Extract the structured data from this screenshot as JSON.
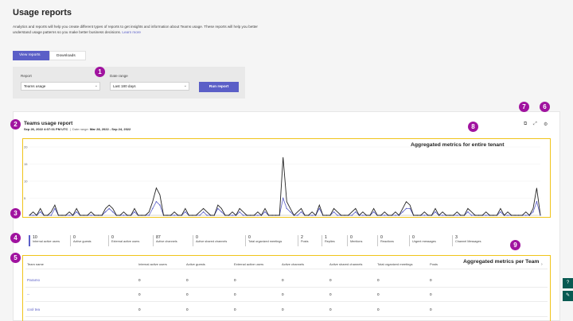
{
  "page": {
    "title": "Usage reports",
    "description": "Analytics and reports will help you create different types of reports to get insights and information about Teams usage. These reports will help you better understand usage patterns so you make better business decisions.",
    "learn_more": "Learn more"
  },
  "tabs": [
    {
      "label": "View reports",
      "active": true
    },
    {
      "label": "Downloads",
      "active": false
    }
  ],
  "filters": {
    "report_label": "Report",
    "report_value": "Teams usage",
    "date_label": "Date range",
    "date_value": "Last 180 days",
    "run_label": "Run report"
  },
  "report": {
    "title": "Teams usage report",
    "generated": "Sep 26, 2022 4:07:01 PM UTC",
    "date_range_label": "Date range:",
    "date_range_value": "Mar 28, 2022 - Sep 24, 2022"
  },
  "icons": [
    "export-icon",
    "expand-icon",
    "settings-icon"
  ],
  "chart_data": {
    "type": "line",
    "y_ticks": [
      "20",
      "15",
      "10",
      "5"
    ],
    "ylim": [
      0,
      20
    ],
    "series": [
      {
        "values": [
          0,
          1,
          0,
          2,
          0,
          0,
          1,
          3,
          0,
          0,
          0,
          1,
          0,
          2,
          0,
          0,
          0,
          1,
          0,
          0,
          0,
          2,
          3,
          2,
          0,
          0,
          1,
          0,
          0,
          2,
          0,
          0,
          0,
          1,
          4,
          8,
          6,
          0,
          0,
          0,
          1,
          0,
          0,
          2,
          0,
          0,
          0,
          1,
          2,
          1,
          0,
          0,
          3,
          2,
          0,
          0,
          1,
          0,
          2,
          1,
          0,
          0,
          0,
          1,
          0,
          2,
          0,
          0,
          0,
          0,
          17,
          4,
          2,
          0,
          1,
          2,
          0,
          0,
          1,
          0,
          3,
          0,
          0,
          0,
          2,
          1,
          0,
          0,
          0,
          1,
          2,
          0,
          1,
          0,
          0,
          2,
          0,
          0,
          1,
          0,
          0,
          1,
          0,
          2,
          4,
          3,
          0,
          0,
          0,
          1,
          0,
          0,
          2,
          0,
          1,
          0,
          0,
          0,
          1,
          0,
          0,
          2,
          1,
          0,
          0,
          0,
          1,
          0,
          0,
          0,
          2,
          0,
          1,
          0,
          0,
          0,
          0,
          1,
          0,
          2,
          8,
          0
        ]
      },
      {
        "values": [
          0,
          0,
          0,
          1,
          0,
          0,
          0,
          2,
          0,
          0,
          0,
          0,
          0,
          1,
          0,
          0,
          0,
          0,
          0,
          0,
          0,
          1,
          2,
          1,
          0,
          0,
          0,
          0,
          0,
          1,
          0,
          0,
          0,
          0,
          2,
          4,
          3,
          0,
          0,
          0,
          0,
          0,
          0,
          1,
          0,
          0,
          0,
          0,
          1,
          0,
          0,
          0,
          2,
          1,
          0,
          0,
          0,
          0,
          1,
          0,
          0,
          0,
          0,
          0,
          0,
          1,
          0,
          0,
          0,
          0,
          5,
          2,
          1,
          0,
          0,
          1,
          0,
          0,
          0,
          0,
          2,
          0,
          0,
          0,
          1,
          0,
          0,
          0,
          0,
          0,
          1,
          0,
          0,
          0,
          0,
          1,
          0,
          0,
          0,
          0,
          0,
          0,
          0,
          1,
          2,
          2,
          0,
          0,
          0,
          0,
          0,
          0,
          1,
          0,
          0,
          0,
          0,
          0,
          0,
          0,
          0,
          1,
          0,
          0,
          0,
          0,
          0,
          0,
          0,
          0,
          1,
          0,
          0,
          0,
          0,
          0,
          0,
          0,
          0,
          1,
          4,
          0
        ]
      }
    ],
    "colors": [
      "#242424",
      "#5b5fc7"
    ]
  },
  "chart_annotation": "Aggregated metrics for entire tenant",
  "stats": [
    {
      "value": "10",
      "label": "Internal active users",
      "selected": true
    },
    {
      "value": "0",
      "label": "Active guests",
      "selected": false
    },
    {
      "value": "0",
      "label": "External active users",
      "selected": false
    },
    {
      "value": "87",
      "label": "Active channels",
      "selected": false
    },
    {
      "value": "0",
      "label": "Active shared channels",
      "selected": false
    },
    {
      "value": "0",
      "label": "Total organized meetings",
      "selected": false
    },
    {
      "value": "2",
      "label": "Posts",
      "selected": false
    },
    {
      "value": "1",
      "label": "Replies",
      "selected": false
    },
    {
      "value": "0",
      "label": "Mentions",
      "selected": false
    },
    {
      "value": "0",
      "label": "Reactions",
      "selected": false
    },
    {
      "value": "0",
      "label": "Urgent messages",
      "selected": false
    },
    {
      "value": "3",
      "label": "Channel Messages",
      "selected": false
    }
  ],
  "table_annotation": "Aggregated metrics per Team",
  "table": {
    "columns": [
      "Team name",
      "Internal active users",
      "Active guests",
      "External active users",
      "Active channels",
      "Active shared channels",
      "Total organized meetings",
      "Posts"
    ],
    "rows": [
      [
        "Paramo",
        "0",
        "0",
        "0",
        "0",
        "0",
        "0",
        "0"
      ],
      [
        "--",
        "0",
        "0",
        "0",
        "0",
        "0",
        "0",
        "0"
      ],
      [
        "cool tea",
        "0",
        "0",
        "0",
        "0",
        "0",
        "0",
        "0"
      ]
    ]
  },
  "badges": [
    "1",
    "2",
    "3",
    "4",
    "5",
    "6",
    "7",
    "8",
    "9"
  ],
  "badge_color": "#a0139f",
  "accent_color": "#5b5fc7"
}
